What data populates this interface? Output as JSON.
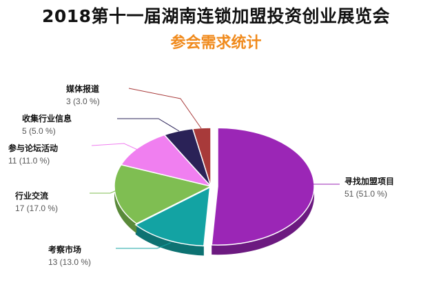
{
  "header": {
    "title": "2018第十一届湖南连锁加盟投资创业展览会",
    "subtitle": "参会需求统计"
  },
  "chart_data": {
    "type": "pie",
    "title": "2018第十一届湖南连锁加盟投资创业展览会",
    "subtitle": "参会需求统计",
    "slices": [
      {
        "name": "寻找加盟项目",
        "value": 51,
        "label": "51 (51.0 %)",
        "color": "#9b26b6",
        "shade": "#6c1a80"
      },
      {
        "name": "考察市场",
        "value": 13,
        "label": "13 (13.0 %)",
        "color": "#13a3a3",
        "shade": "#0d7272"
      },
      {
        "name": "行业交流",
        "value": 17,
        "label": "17 (17.0 %)",
        "color": "#7fbe52",
        "shade": "#5a8a3a"
      },
      {
        "name": "参与论坛活动",
        "value": 11,
        "label": "11 (11.0 %)",
        "color": "#f07ff0",
        "shade": "#b55cb5"
      },
      {
        "name": "收集行业信息",
        "value": 5,
        "label": "5 (5.0 %)",
        "color": "#2a2257",
        "shade": "#1b163a"
      },
      {
        "name": "媒体报道",
        "value": 3,
        "label": "3 (3.0 %)",
        "color": "#a83a3a",
        "shade": "#782828"
      }
    ]
  }
}
